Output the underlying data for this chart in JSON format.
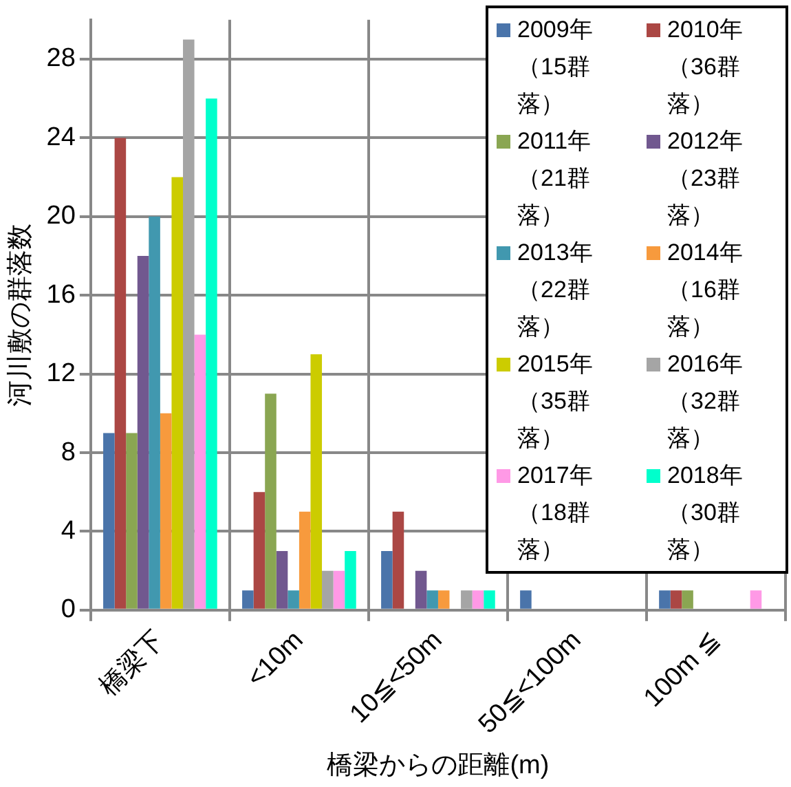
{
  "chart_data": {
    "type": "bar",
    "xlabel": "橋梁からの距離(m)",
    "ylabel": "河川敷の群落数",
    "categories": [
      "橋梁下",
      "<10m",
      "10≦<50m",
      "50≦<100m",
      "100m ≦"
    ],
    "series": [
      {
        "name": "2009年（15群落）",
        "color": "#4a74aa",
        "values": [
          9,
          1,
          3,
          1,
          1
        ]
      },
      {
        "name": "2010年（36群落）",
        "color": "#ab4744",
        "values": [
          24,
          6,
          5,
          0,
          1
        ]
      },
      {
        "name": "2011年（21群落）",
        "color": "#8aa652",
        "values": [
          9,
          11,
          0,
          0,
          1
        ]
      },
      {
        "name": "2012年（23群落）",
        "color": "#71588f",
        "values": [
          18,
          3,
          2,
          0,
          0
        ]
      },
      {
        "name": "2013年（22群落）",
        "color": "#4198af",
        "values": [
          20,
          1,
          1,
          0,
          0
        ]
      },
      {
        "name": "2014年（16群落）",
        "color": "#f79a3d",
        "values": [
          10,
          5,
          1,
          0,
          0
        ]
      },
      {
        "name": "2015年（35群落）",
        "color": "#cccc00",
        "values": [
          22,
          13,
          0,
          0,
          0
        ]
      },
      {
        "name": "2016年（32群落）",
        "color": "#a5a5a5",
        "values": [
          29,
          2,
          1,
          0,
          0
        ]
      },
      {
        "name": "2017年（18群落）",
        "color": "#ff99e6",
        "values": [
          14,
          2,
          1,
          0,
          1
        ]
      },
      {
        "name": "2018年（30群落）",
        "color": "#00ffcc",
        "values": [
          26,
          3,
          1,
          0,
          0
        ]
      }
    ],
    "ylim": [
      0,
      30
    ],
    "yticks": [
      0,
      4,
      8,
      12,
      16,
      20,
      24,
      28
    ],
    "grid": true,
    "legend": "top right"
  }
}
